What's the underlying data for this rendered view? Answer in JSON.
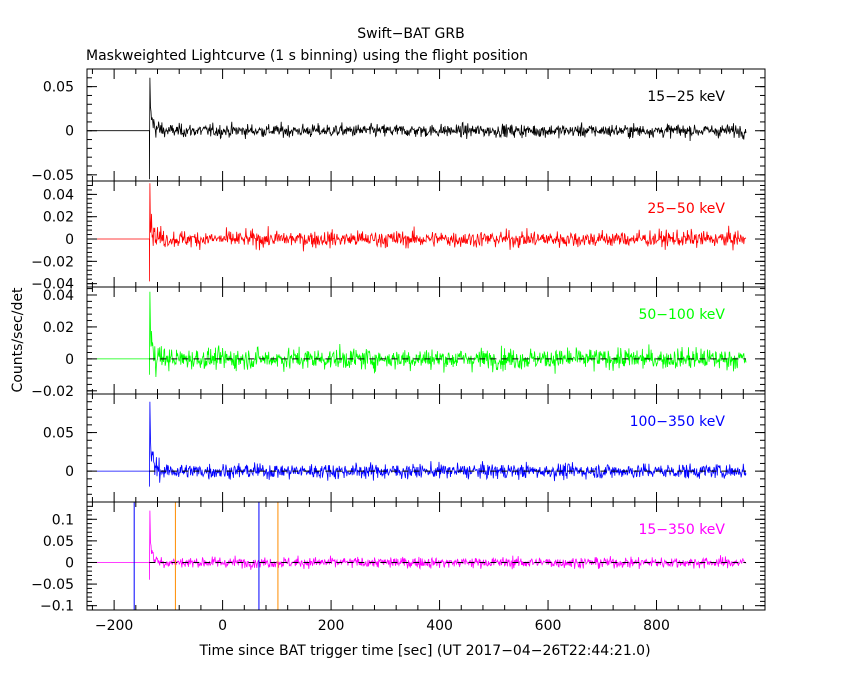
{
  "chart_data": {
    "type": "line",
    "title": "Swift−BAT GRB",
    "subtitle": "Maskweighted Lightcurve (1 s binning) using the flight position",
    "xlabel": "Time since BAT trigger time [sec] (UT 2017−04−26T22:44:21.0)",
    "ylabel": "Counts/sec/det",
    "xlim": [
      -250,
      1000
    ],
    "x_ticks": [
      -200,
      0,
      200,
      400,
      600,
      800
    ],
    "x_tick_labels": [
      "−200",
      "0",
      "200",
      "400",
      "600",
      "800"
    ],
    "trigger_time": -135,
    "pre_trigger_start": -245,
    "data_end": 965,
    "panels": [
      {
        "name": "15-25 keV",
        "label": "15−25 keV",
        "color": "#000000",
        "ylim": [
          -0.057,
          0.07
        ],
        "y_ticks": [
          0.05,
          0,
          -0.05
        ],
        "y_tick_labels": [
          "0.05",
          "0",
          "−0.05"
        ],
        "noise_sigma": 0.0065,
        "spike_peak": 0.06,
        "spike_dip": -0.055,
        "dashed_zero": false
      },
      {
        "name": "25-50 keV",
        "label": "25−50 keV",
        "color": "#ff0000",
        "ylim": [
          -0.043,
          0.052
        ],
        "y_ticks": [
          0.04,
          0.02,
          0,
          -0.02,
          -0.04
        ],
        "y_tick_labels": [
          "0.04",
          "0.02",
          "0",
          "−0.02",
          "−0.04"
        ],
        "noise_sigma": 0.0065,
        "spike_peak": 0.05,
        "spike_dip": -0.038,
        "dashed_zero": false
      },
      {
        "name": "50-100 keV",
        "label": "50−100 keV",
        "color": "#00ff00",
        "ylim": [
          -0.022,
          0.045
        ],
        "y_ticks": [
          0.04,
          0.02,
          0,
          -0.02
        ],
        "y_tick_labels": [
          "0.04",
          "0.02",
          "0",
          "−0.02"
        ],
        "noise_sigma": 0.0058,
        "spike_peak": 0.042,
        "spike_dip": -0.01,
        "dashed_zero": true
      },
      {
        "name": "100-350 keV",
        "label": "100−350 keV",
        "color": "#0000ff",
        "ylim": [
          -0.04,
          0.1
        ],
        "y_ticks": [
          0.05,
          0
        ],
        "y_tick_labels": [
          "0.05",
          "0"
        ],
        "noise_sigma": 0.0085,
        "spike_peak": 0.09,
        "spike_dip": -0.02,
        "dashed_zero": true
      },
      {
        "name": "15-350 keV",
        "label": "15−350 keV",
        "color": "#ff00ff",
        "ylim": [
          -0.11,
          0.14
        ],
        "y_ticks": [
          0.1,
          0.05,
          0,
          -0.05,
          -0.1
        ],
        "y_tick_labels": [
          "0.1",
          "0.05",
          "0",
          "−0.05",
          "−0.1"
        ],
        "noise_sigma": 0.011,
        "spike_peak": 0.12,
        "spike_dip": -0.04,
        "dashed_zero": true
      }
    ],
    "markers": [
      {
        "name": "blue-marker-start",
        "x": -163,
        "color": "#0000ff"
      },
      {
        "name": "orange-marker-start",
        "x": -87,
        "color": "#ff8c00"
      },
      {
        "name": "blue-marker-end",
        "x": 67,
        "color": "#0000ff"
      },
      {
        "name": "orange-marker-end",
        "x": 102,
        "color": "#ff8c00"
      }
    ]
  }
}
